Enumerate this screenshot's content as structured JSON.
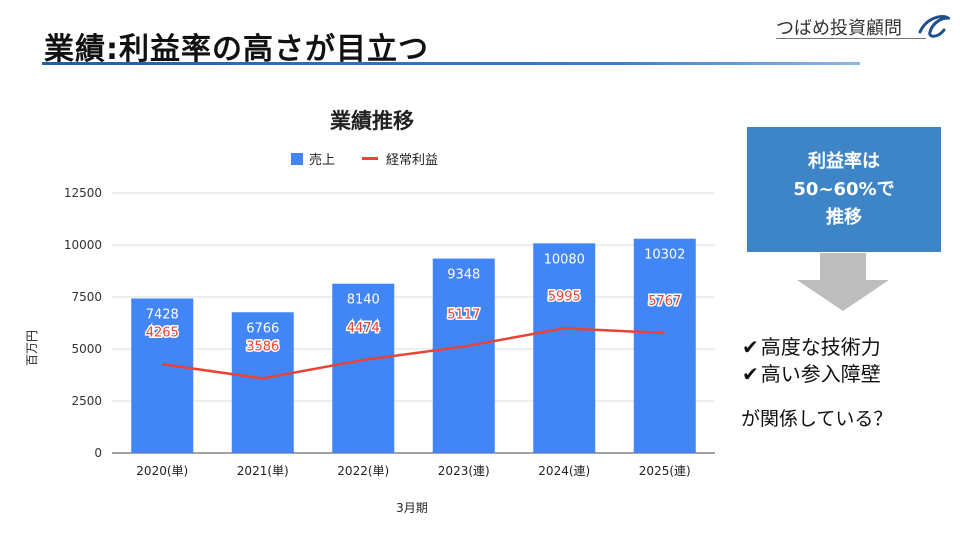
{
  "header": {
    "title": "業績:利益率の高さが目立つ",
    "logo_text": "つばめ投資顧問"
  },
  "chart_data": {
    "type": "bar",
    "title": "業績推移",
    "categories": [
      "2020(単)",
      "2021(単)",
      "2022(単)",
      "2023(連)",
      "2024(連)",
      "2025(連)"
    ],
    "series": [
      {
        "name": "売上",
        "type": "bar",
        "color": "#4285f4",
        "values": [
          7428,
          6766,
          8140,
          9348,
          10080,
          10302
        ]
      },
      {
        "name": "経常利益",
        "type": "line",
        "color": "#ea4335",
        "values": [
          4265,
          3586,
          4474,
          5117,
          5995,
          5767
        ]
      }
    ],
    "xlabel": "3月期",
    "ylabel": "百万円",
    "ylim": [
      0,
      12500
    ],
    "yticks": [
      0,
      2500,
      5000,
      7500,
      10000,
      12500
    ],
    "legend_position": "top"
  },
  "callout": {
    "lines": [
      "利益率は",
      "50~60%で",
      "推移"
    ],
    "color": "#3d85c6"
  },
  "reasons": {
    "items": [
      "高度な技術力",
      "高い参入障壁"
    ],
    "check": "✔",
    "conclusion": "が関係している？"
  }
}
